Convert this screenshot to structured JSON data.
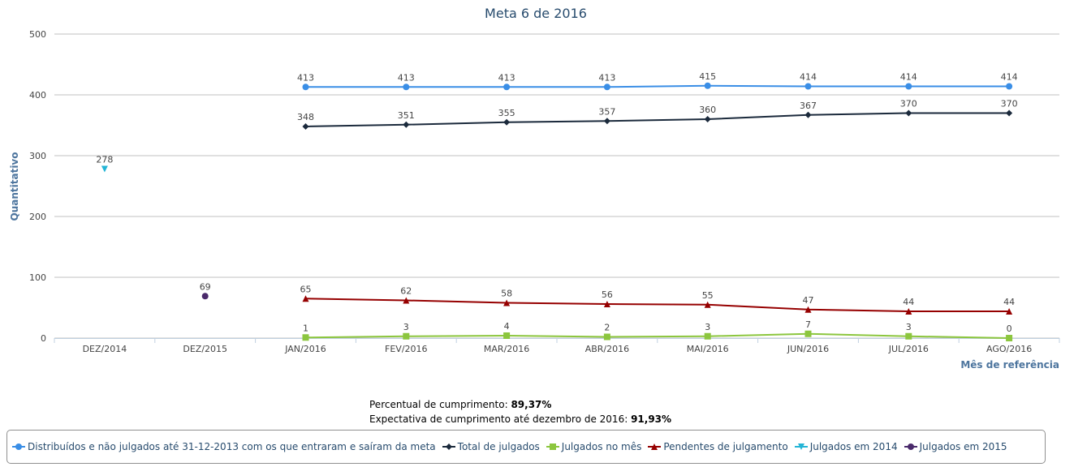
{
  "chart_data": {
    "type": "line",
    "title": "Meta 6 de 2016",
    "y_label": "Quantitativo",
    "x_label": "Mês de referência",
    "categories": [
      "DEZ/2014",
      "DEZ/2015",
      "JAN/2016",
      "FEV/2016",
      "MAR/2016",
      "ABR/2016",
      "MAI/2016",
      "JUN/2016",
      "JUL/2016",
      "AGO/2016"
    ],
    "series": [
      {
        "name": "Distribuídos e não julgados até 31-12-2013 com os que entraram e saíram da meta",
        "color": "#3a8ee6",
        "marker": "circle",
        "values": [
          null,
          null,
          413,
          413,
          413,
          413,
          415,
          414,
          414,
          414
        ]
      },
      {
        "name": "Total de julgados",
        "color": "#1b2a3c",
        "marker": "diamond",
        "values": [
          null,
          null,
          348,
          351,
          355,
          357,
          360,
          367,
          370,
          370
        ]
      },
      {
        "name": "Julgados no mês",
        "color": "#8cc63e",
        "marker": "square",
        "values": [
          null,
          null,
          1,
          3,
          4,
          2,
          3,
          7,
          3,
          0
        ]
      },
      {
        "name": "Pendentes de julgamento",
        "color": "#960000",
        "marker": "triangle",
        "values": [
          null,
          null,
          65,
          62,
          58,
          56,
          55,
          47,
          44,
          44
        ]
      },
      {
        "name": "Julgados em 2014",
        "color": "#24b5d6",
        "marker": "triangle-down",
        "values": [
          278,
          null,
          null,
          null,
          null,
          null,
          null,
          null,
          null,
          null
        ]
      },
      {
        "name": "Julgados em 2015",
        "color": "#4a2a6b",
        "marker": "circle",
        "values": [
          null,
          69,
          null,
          null,
          null,
          null,
          null,
          null,
          null,
          null
        ]
      }
    ],
    "ylim": [
      0,
      500
    ],
    "yticks": [
      0,
      100,
      200,
      300,
      400,
      500
    ],
    "grid": true,
    "notes": [
      {
        "label": "Percentual de cumprimento:",
        "value": "89,37%"
      },
      {
        "label": "Expectativa de cumprimento até dezembro de 2016:",
        "value": "91,93%"
      }
    ]
  }
}
